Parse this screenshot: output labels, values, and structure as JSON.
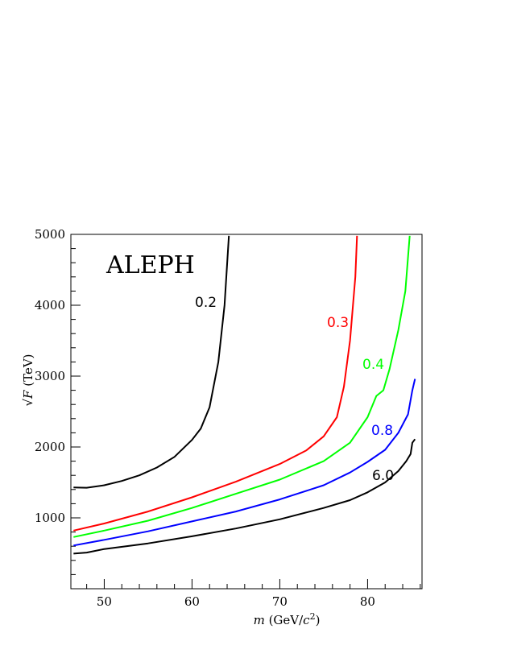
{
  "chart_data": {
    "type": "line",
    "annotation": "ALEPH",
    "xlabel": {
      "var": "m",
      "rest": " (GeV/",
      "c": "c",
      "sup": "2",
      "close": ")"
    },
    "ylabel": {
      "root": "√",
      "var": "F",
      "rest": " (TeV)"
    },
    "xlim": [
      46.2,
      86.2
    ],
    "ylim": [
      0,
      5000
    ],
    "x_ticks": [
      50,
      60,
      70,
      80
    ],
    "y_ticks": [
      1000,
      2000,
      3000,
      4000,
      5000
    ],
    "x_minor_step": 2,
    "y_minor_step": 200,
    "grid": false,
    "series": [
      {
        "name": "0.2",
        "color": "#000000",
        "points": [
          [
            46.5,
            1430
          ],
          [
            48,
            1425
          ],
          [
            50,
            1460
          ],
          [
            52,
            1520
          ],
          [
            54,
            1600
          ],
          [
            56,
            1710
          ],
          [
            58,
            1860
          ],
          [
            60,
            2100
          ],
          [
            61,
            2260
          ],
          [
            62,
            2560
          ],
          [
            63,
            3200
          ],
          [
            63.7,
            4000
          ],
          [
            64.2,
            4980
          ]
        ]
      },
      {
        "name": "0.3",
        "color": "#ff0000",
        "points": [
          [
            46.5,
            820
          ],
          [
            50,
            920
          ],
          [
            55,
            1090
          ],
          [
            60,
            1290
          ],
          [
            65,
            1510
          ],
          [
            70,
            1760
          ],
          [
            73,
            1950
          ],
          [
            75,
            2150
          ],
          [
            76.5,
            2420
          ],
          [
            77.3,
            2850
          ],
          [
            78,
            3500
          ],
          [
            78.6,
            4400
          ],
          [
            78.8,
            4980
          ]
        ]
      },
      {
        "name": "0.4",
        "color": "#00ff00",
        "points": [
          [
            46.5,
            730
          ],
          [
            50,
            820
          ],
          [
            55,
            960
          ],
          [
            60,
            1140
          ],
          [
            65,
            1340
          ],
          [
            70,
            1540
          ],
          [
            75,
            1800
          ],
          [
            78,
            2060
          ],
          [
            80,
            2420
          ],
          [
            81,
            2720
          ],
          [
            81.8,
            2800
          ],
          [
            82.5,
            3100
          ],
          [
            83.5,
            3650
          ],
          [
            84.3,
            4200
          ],
          [
            84.8,
            4980
          ]
        ]
      },
      {
        "name": "0.8",
        "color": "#0000ff",
        "points": [
          [
            46.5,
            610
          ],
          [
            50,
            690
          ],
          [
            55,
            810
          ],
          [
            60,
            950
          ],
          [
            65,
            1090
          ],
          [
            70,
            1260
          ],
          [
            75,
            1460
          ],
          [
            78,
            1640
          ],
          [
            80,
            1790
          ],
          [
            82,
            1960
          ],
          [
            83.5,
            2200
          ],
          [
            84.6,
            2460
          ],
          [
            85.1,
            2800
          ],
          [
            85.4,
            2960
          ]
        ]
      },
      {
        "name": "6.0",
        "color": "#000000",
        "points": [
          [
            46.5,
            495
          ],
          [
            48,
            510
          ],
          [
            50,
            560
          ],
          [
            55,
            640
          ],
          [
            60,
            740
          ],
          [
            65,
            850
          ],
          [
            70,
            980
          ],
          [
            75,
            1140
          ],
          [
            78,
            1250
          ],
          [
            80,
            1360
          ],
          [
            82,
            1500
          ],
          [
            83.5,
            1660
          ],
          [
            84.4,
            1800
          ],
          [
            84.9,
            1900
          ],
          [
            85.1,
            2060
          ],
          [
            85.4,
            2110
          ]
        ]
      }
    ]
  }
}
